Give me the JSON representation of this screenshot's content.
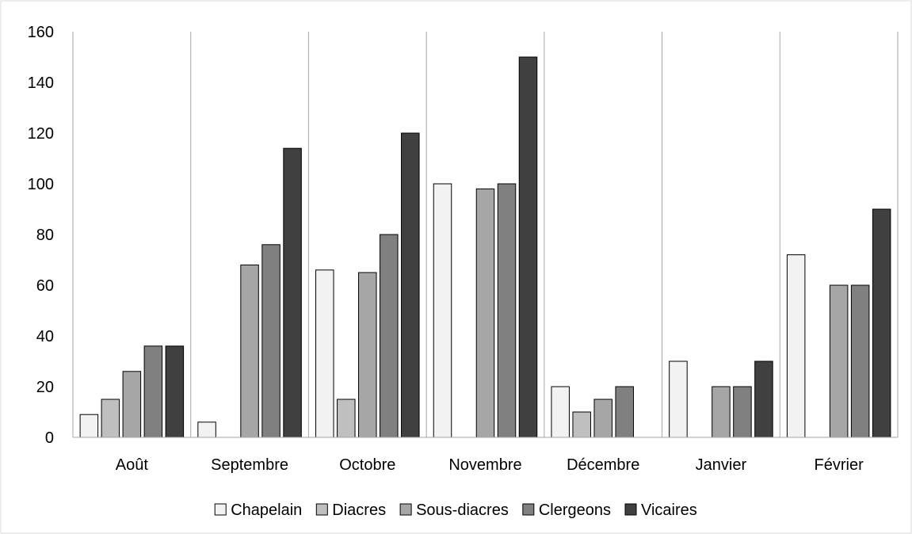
{
  "chart_data": {
    "type": "bar",
    "title": "",
    "xlabel": "",
    "ylabel": "",
    "categories": [
      "Août",
      "Septembre",
      "Octobre",
      "Novembre",
      "Décembre",
      "Janvier",
      "Février"
    ],
    "ylim": [
      0,
      160
    ],
    "yticks": [
      "0",
      "20",
      "40",
      "60",
      "80",
      "100",
      "120",
      "140",
      "160"
    ],
    "grid": "vertical separators between categories",
    "legend_position": "bottom",
    "series": [
      {
        "name": "Chapelain",
        "color": "#f2f2f2",
        "values": [
          9,
          6,
          66,
          100,
          20,
          30,
          72
        ]
      },
      {
        "name": "Diacres",
        "color": "#bfbfbf",
        "values": [
          15,
          0,
          15,
          0,
          10,
          0,
          0
        ]
      },
      {
        "name": "Sous-diacres",
        "color": "#a6a6a6",
        "values": [
          26,
          68,
          65,
          98,
          15,
          20,
          60
        ]
      },
      {
        "name": "Clergeons",
        "color": "#808080",
        "values": [
          36,
          76,
          80,
          100,
          20,
          20,
          60
        ]
      },
      {
        "name": "Vicaires",
        "color": "#404040",
        "values": [
          36,
          114,
          120,
          150,
          0,
          30,
          90
        ]
      }
    ]
  }
}
